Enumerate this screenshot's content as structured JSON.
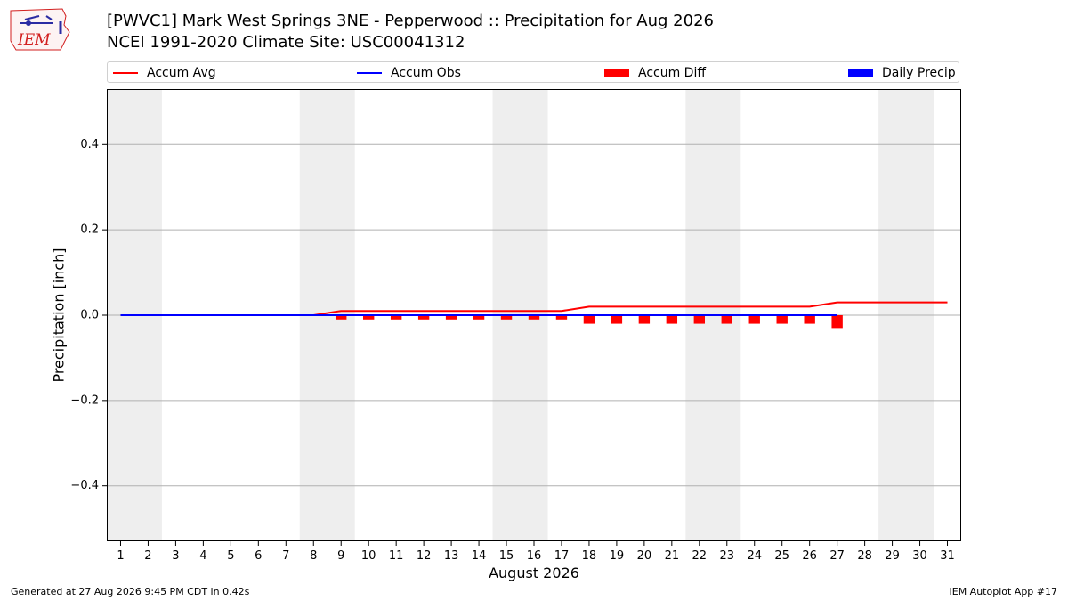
{
  "header": {
    "title_line1": "[PWVC1] Mark West Springs 3NE - Pepperwood :: Precipitation for Aug 2026",
    "title_line2": "NCEI 1991-2020 Climate Site: USC00041312",
    "logo_text": "IEM"
  },
  "legend": {
    "items": [
      {
        "label": "Accum Avg",
        "color": "#ff0000",
        "kind": "line"
      },
      {
        "label": "Accum Obs",
        "color": "#0000ff",
        "kind": "line"
      },
      {
        "label": "Accum Diff",
        "color": "#ff0000",
        "kind": "box"
      },
      {
        "label": "Daily Precip",
        "color": "#0000ff",
        "kind": "box"
      }
    ]
  },
  "footer": {
    "generated": "Generated at 27 Aug 2026 9:45 PM CDT in 0.42s",
    "app": "IEM Autoplot App #17"
  },
  "chart_data": {
    "type": "line",
    "title": "[PWVC1] Mark West Springs 3NE - Pepperwood :: Precipitation for Aug 2026",
    "xlabel": "August 2026",
    "ylabel": "Precipitation [inch]",
    "xlim": [
      0.5,
      31.5
    ],
    "ylim": [
      -0.53,
      0.53
    ],
    "x_ticks": [
      1,
      2,
      3,
      4,
      5,
      6,
      7,
      8,
      9,
      10,
      11,
      12,
      13,
      14,
      15,
      16,
      17,
      18,
      19,
      20,
      21,
      22,
      23,
      24,
      25,
      26,
      27,
      28,
      29,
      30,
      31
    ],
    "y_ticks": [
      0.4,
      0.2,
      0.0,
      -0.2,
      -0.4
    ],
    "y_tick_labels": [
      "0.4",
      "0.2",
      "0.0",
      "−0.2",
      "−0.4"
    ],
    "grid": "y",
    "weekend_shading": [
      [
        1,
        2
      ],
      [
        8,
        9
      ],
      [
        15,
        16
      ],
      [
        22,
        23
      ],
      [
        29,
        30
      ]
    ],
    "accum_avg": {
      "x": [
        1,
        2,
        3,
        4,
        5,
        6,
        7,
        8,
        9,
        10,
        11,
        12,
        13,
        14,
        15,
        16,
        17,
        18,
        19,
        20,
        21,
        22,
        23,
        24,
        25,
        26,
        27,
        28,
        29,
        30,
        31
      ],
      "y": [
        0,
        0,
        0,
        0,
        0,
        0,
        0,
        0,
        0.01,
        0.01,
        0.01,
        0.01,
        0.01,
        0.01,
        0.01,
        0.01,
        0.01,
        0.02,
        0.02,
        0.02,
        0.02,
        0.02,
        0.02,
        0.02,
        0.02,
        0.02,
        0.03,
        0.03,
        0.03,
        0.03,
        0.03
      ],
      "color": "#ff0000"
    },
    "accum_obs": {
      "x": [
        1,
        2,
        3,
        4,
        5,
        6,
        7,
        8,
        9,
        10,
        11,
        12,
        13,
        14,
        15,
        16,
        17,
        18,
        19,
        20,
        21,
        22,
        23,
        24,
        25,
        26,
        27
      ],
      "y": [
        0,
        0,
        0,
        0,
        0,
        0,
        0,
        0,
        0,
        0,
        0,
        0,
        0,
        0,
        0,
        0,
        0,
        0,
        0,
        0,
        0,
        0,
        0,
        0,
        0,
        0,
        0
      ],
      "color": "#0000ff"
    },
    "accum_diff": {
      "x": [
        9,
        10,
        11,
        12,
        13,
        14,
        15,
        16,
        17,
        18,
        19,
        20,
        21,
        22,
        23,
        24,
        25,
        26,
        27
      ],
      "y": [
        -0.01,
        -0.01,
        -0.01,
        -0.01,
        -0.01,
        -0.01,
        -0.01,
        -0.01,
        -0.01,
        -0.02,
        -0.02,
        -0.02,
        -0.02,
        -0.02,
        -0.02,
        -0.02,
        -0.02,
        -0.02,
        -0.03
      ],
      "color": "#ff0000"
    }
  }
}
